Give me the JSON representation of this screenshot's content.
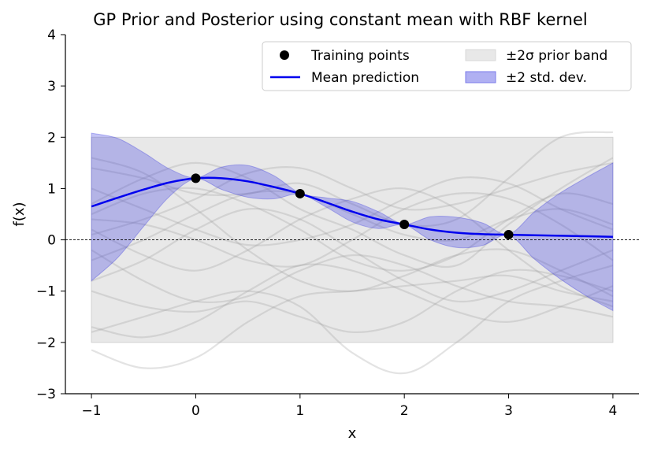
{
  "chart_data": {
    "type": "line",
    "title": "GP Prior and Posterior using constant mean with RBF kernel",
    "xlabel": "x",
    "ylabel": "f(x)",
    "xlim": [
      -1.25,
      4.25
    ],
    "ylim": [
      -3,
      4
    ],
    "xticks": [
      -1,
      0,
      1,
      2,
      3,
      4
    ],
    "yticks": [
      -3,
      -2,
      -1,
      0,
      1,
      2,
      3,
      4
    ],
    "xtick_labels": [
      "−1",
      "0",
      "1",
      "2",
      "3",
      "4"
    ],
    "ytick_labels": [
      "−3",
      "−2",
      "−1",
      "0",
      "1",
      "2",
      "3",
      "4"
    ],
    "grid": false,
    "legend_position": "top-right",
    "legend": [
      {
        "label": "Training points",
        "kind": "point",
        "color": "#000000"
      },
      {
        "label": "±2σ prior band",
        "kind": "patch",
        "color": "#d9d9d9"
      },
      {
        "label": "Mean prediction",
        "kind": "line",
        "color": "#0000ee"
      },
      {
        "label": "±2 std. dev.",
        "kind": "patch",
        "color": "#7b7bea"
      }
    ],
    "prior_band": {
      "x": [
        -1,
        4
      ],
      "lower": -2,
      "upper": 2,
      "color": "#d9d9d9"
    },
    "zero_line": {
      "y": 0,
      "style": "dashed"
    },
    "training_points": {
      "x": [
        0,
        1,
        2,
        3
      ],
      "y": [
        1.2,
        0.9,
        0.3,
        0.1
      ]
    },
    "mean": {
      "x": [
        -1,
        -0.75,
        -0.5,
        -0.25,
        0,
        0.25,
        0.5,
        0.75,
        1,
        1.25,
        1.5,
        1.75,
        2,
        2.25,
        2.5,
        2.75,
        3,
        3.25,
        3.5,
        3.75,
        4
      ],
      "y": [
        0.65,
        0.82,
        0.98,
        1.12,
        1.2,
        1.2,
        1.14,
        1.03,
        0.9,
        0.73,
        0.55,
        0.4,
        0.3,
        0.2,
        0.14,
        0.11,
        0.1,
        0.09,
        0.08,
        0.07,
        0.06
      ]
    },
    "std_band": {
      "x": [
        -1,
        -0.75,
        -0.5,
        -0.25,
        0,
        0.25,
        0.5,
        0.75,
        1,
        1.25,
        1.5,
        1.75,
        2,
        2.25,
        2.5,
        2.75,
        3,
        3.25,
        3.5,
        3.75,
        4
      ],
      "upper": [
        2.08,
        1.98,
        1.7,
        1.38,
        1.21,
        1.42,
        1.45,
        1.25,
        0.91,
        0.82,
        0.75,
        0.55,
        0.31,
        0.45,
        0.44,
        0.33,
        0.11,
        0.55,
        0.92,
        1.22,
        1.5
      ],
      "lower": [
        -0.8,
        -0.35,
        0.26,
        0.85,
        1.19,
        0.98,
        0.83,
        0.8,
        0.89,
        0.64,
        0.35,
        0.22,
        0.29,
        0.0,
        -0.15,
        -0.11,
        0.09,
        -0.38,
        -0.77,
        -1.1,
        -1.38
      ]
    },
    "prior_samples": [
      {
        "x": [
          -1,
          -0.5,
          0,
          0.5,
          1,
          1.5,
          2,
          2.5,
          3,
          3.5,
          4
        ],
        "y": [
          -2.15,
          -2.5,
          -2.3,
          -1.6,
          -1.1,
          -1.0,
          -0.9,
          -0.8,
          -0.7,
          -1.0,
          -1.2
        ]
      },
      {
        "x": [
          -1,
          -0.5,
          0,
          0.5,
          1,
          1.5,
          2,
          2.5,
          3,
          3.5,
          4
        ],
        "y": [
          1.4,
          1.2,
          0.9,
          0.9,
          1.1,
          0.7,
          0.3,
          0.4,
          1.2,
          2.0,
          2.1
        ]
      },
      {
        "x": [
          -1,
          -0.5,
          0,
          0.5,
          1,
          1.5,
          2,
          2.5,
          3,
          3.5,
          4
        ],
        "y": [
          0.7,
          1.2,
          1.5,
          1.2,
          0.6,
          0.2,
          -0.3,
          -0.5,
          0.3,
          1.0,
          1.6
        ]
      },
      {
        "x": [
          -1,
          -0.5,
          0,
          0.5,
          1,
          1.5,
          2,
          2.5,
          3,
          3.5,
          4
        ],
        "y": [
          -1.8,
          -1.5,
          -1.2,
          -1.0,
          -1.3,
          -2.2,
          -2.6,
          -2.0,
          -1.2,
          -0.8,
          -0.5
        ]
      },
      {
        "x": [
          -1,
          -0.5,
          0,
          0.5,
          1,
          1.5,
          2,
          2.5,
          3,
          3.5,
          4
        ],
        "y": [
          0.2,
          -0.3,
          -0.6,
          -0.2,
          0.4,
          0.8,
          1.0,
          0.6,
          -0.2,
          -0.9,
          -1.3
        ]
      },
      {
        "x": [
          -1,
          -0.5,
          0,
          0.5,
          1,
          1.5,
          2,
          2.5,
          3,
          3.5,
          4
        ],
        "y": [
          1.0,
          0.6,
          0.2,
          -0.1,
          0.0,
          0.3,
          0.8,
          1.2,
          1.1,
          0.6,
          0.2
        ]
      },
      {
        "x": [
          -1,
          -0.5,
          0,
          0.5,
          1,
          1.5,
          2,
          2.5,
          3,
          3.5,
          4
        ],
        "y": [
          -0.8,
          -0.4,
          0.2,
          0.6,
          0.4,
          -0.2,
          -0.8,
          -1.2,
          -1.0,
          -0.6,
          -0.2
        ]
      },
      {
        "x": [
          -1,
          -0.5,
          0,
          0.5,
          1,
          1.5,
          2,
          2.5,
          3,
          3.5,
          4
        ],
        "y": [
          -1.7,
          -1.9,
          -1.6,
          -1.0,
          -0.5,
          -0.6,
          -1.0,
          -1.4,
          -1.6,
          -1.3,
          -0.9
        ]
      },
      {
        "x": [
          -1,
          -0.5,
          0,
          0.5,
          1,
          1.5,
          2,
          2.5,
          3,
          3.5,
          4
        ],
        "y": [
          0.5,
          0.9,
          1.0,
          0.7,
          0.2,
          -0.4,
          -0.6,
          -0.3,
          0.4,
          0.9,
          0.7
        ]
      },
      {
        "x": [
          -1,
          -0.5,
          0,
          0.5,
          1,
          1.5,
          2,
          2.5,
          3,
          3.5,
          4
        ],
        "y": [
          -0.4,
          0.0,
          0.5,
          0.9,
          0.9,
          0.5,
          0.1,
          0.0,
          0.4,
          0.6,
          0.3
        ]
      },
      {
        "x": [
          -1,
          -0.5,
          0,
          0.5,
          1,
          1.5,
          2,
          2.5,
          3,
          3.5,
          4
        ],
        "y": [
          1.6,
          1.3,
          0.6,
          -0.2,
          -0.8,
          -1.0,
          -0.7,
          -0.3,
          -0.2,
          -0.6,
          -1.1
        ]
      },
      {
        "x": [
          -1,
          -0.5,
          0,
          0.5,
          1,
          1.5,
          2,
          2.5,
          3,
          3.5,
          4
        ],
        "y": [
          -1.0,
          -1.3,
          -1.4,
          -1.2,
          -1.5,
          -1.8,
          -1.6,
          -1.0,
          -0.6,
          -0.7,
          -1.0
        ]
      },
      {
        "x": [
          -1,
          -0.5,
          0,
          0.5,
          1,
          1.5,
          2,
          2.5,
          3,
          3.5,
          4
        ],
        "y": [
          0.1,
          0.4,
          0.8,
          1.3,
          1.4,
          1.0,
          0.6,
          0.7,
          1.0,
          1.3,
          1.5
        ]
      },
      {
        "x": [
          -1,
          -0.5,
          0,
          0.5,
          1,
          1.5,
          2,
          2.5,
          3,
          3.5,
          4
        ],
        "y": [
          -0.2,
          -0.8,
          -1.2,
          -1.1,
          -0.6,
          -0.3,
          -0.5,
          -0.9,
          -1.2,
          -1.3,
          -1.5
        ]
      },
      {
        "x": [
          -1,
          -0.5,
          0,
          0.5,
          1,
          1.5,
          2,
          2.5,
          3,
          3.5,
          4
        ],
        "y": [
          0.4,
          0.3,
          0.0,
          -0.4,
          -0.5,
          0.0,
          0.6,
          0.9,
          0.8,
          0.3,
          -0.4
        ]
      }
    ]
  }
}
